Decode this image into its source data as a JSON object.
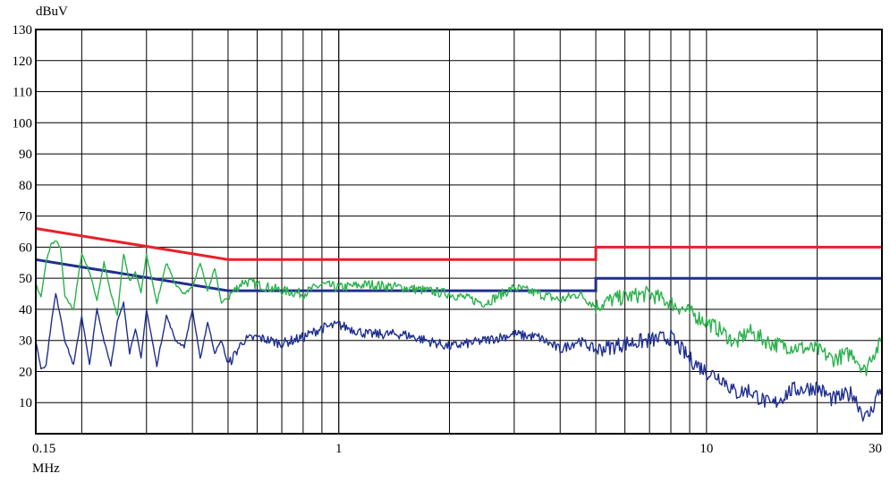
{
  "chart_data": {
    "type": "line",
    "title": "",
    "ylabel": "dBuV",
    "xlabel": "MHz",
    "x_scale": "log",
    "xlim": [
      0.15,
      30
    ],
    "ylim": [
      0,
      130
    ],
    "grid": true,
    "y_ticks": [
      10,
      20,
      30,
      40,
      50,
      60,
      70,
      80,
      90,
      100,
      110,
      120,
      130
    ],
    "x_ticks": [
      {
        "value": 0.15,
        "label": "0.15"
      },
      {
        "value": 1,
        "label": "1"
      },
      {
        "value": 10,
        "label": "10"
      },
      {
        "value": 30,
        "label": "30"
      }
    ],
    "series": [
      {
        "role": "limit-qp",
        "color": "#e8202a",
        "style": "step",
        "x": [
          0.15,
          0.5,
          0.5,
          5,
          5,
          30
        ],
        "y": [
          66,
          56,
          56,
          56,
          60,
          60
        ]
      },
      {
        "role": "limit-avg",
        "color": "#1f2f8f",
        "style": "step",
        "x": [
          0.15,
          0.5,
          0.5,
          5,
          5,
          30
        ],
        "y": [
          56,
          46,
          46,
          46,
          50,
          50
        ]
      },
      {
        "role": "measured-qp",
        "color": "#2bb24c",
        "style": "trace",
        "x": [
          0.15,
          0.155,
          0.16,
          0.165,
          0.17,
          0.175,
          0.18,
          0.19,
          0.2,
          0.21,
          0.22,
          0.23,
          0.24,
          0.25,
          0.26,
          0.27,
          0.28,
          0.29,
          0.3,
          0.32,
          0.34,
          0.36,
          0.38,
          0.4,
          0.42,
          0.44,
          0.46,
          0.48,
          0.5,
          0.55,
          0.6,
          0.7,
          0.8,
          0.9,
          1,
          1.2,
          1.5,
          2,
          2.5,
          3,
          3.5,
          4,
          4.5,
          5,
          5.5,
          6,
          7,
          8,
          9,
          10,
          11,
          12,
          13,
          15,
          17,
          20,
          22,
          25,
          27,
          28,
          29,
          30
        ],
        "y": [
          48,
          44,
          55,
          61,
          62,
          60,
          44,
          40,
          58,
          52,
          43,
          55,
          45,
          38,
          58,
          49,
          52,
          45,
          58,
          42,
          55,
          48,
          45,
          47,
          55,
          46,
          53,
          42,
          44,
          49,
          48,
          46,
          45,
          48,
          47,
          48,
          47,
          45,
          42,
          47,
          45,
          43,
          45,
          41,
          43,
          44,
          45,
          42,
          39,
          36,
          33,
          29,
          33,
          29,
          28,
          27,
          24,
          26,
          20,
          25,
          27,
          30
        ]
      },
      {
        "role": "measured-avg",
        "color": "#1f2f8f",
        "style": "trace",
        "x": [
          0.15,
          0.155,
          0.16,
          0.165,
          0.17,
          0.175,
          0.18,
          0.19,
          0.2,
          0.21,
          0.22,
          0.23,
          0.24,
          0.25,
          0.26,
          0.27,
          0.28,
          0.29,
          0.3,
          0.32,
          0.34,
          0.36,
          0.38,
          0.4,
          0.42,
          0.44,
          0.46,
          0.48,
          0.5,
          0.55,
          0.6,
          0.7,
          0.8,
          0.9,
          1,
          1.2,
          1.5,
          2,
          2.5,
          3,
          3.5,
          4,
          4.5,
          5,
          5.5,
          6,
          7,
          8,
          9,
          10,
          11,
          12,
          13,
          15,
          17,
          20,
          22,
          25,
          27,
          28,
          29,
          30
        ],
        "y": [
          30,
          21,
          22,
          35,
          45,
          38,
          30,
          22,
          38,
          22,
          40,
          30,
          22,
          36,
          42,
          26,
          34,
          24,
          40,
          22,
          38,
          30,
          28,
          40,
          24,
          36,
          26,
          30,
          22,
          30,
          31,
          29,
          31,
          34,
          35,
          32,
          32,
          28,
          30,
          32,
          31,
          27,
          30,
          27,
          28,
          29,
          30,
          31,
          24,
          20,
          18,
          13,
          14,
          9,
          14,
          15,
          11,
          13,
          5,
          7,
          12,
          15
        ]
      }
    ]
  }
}
